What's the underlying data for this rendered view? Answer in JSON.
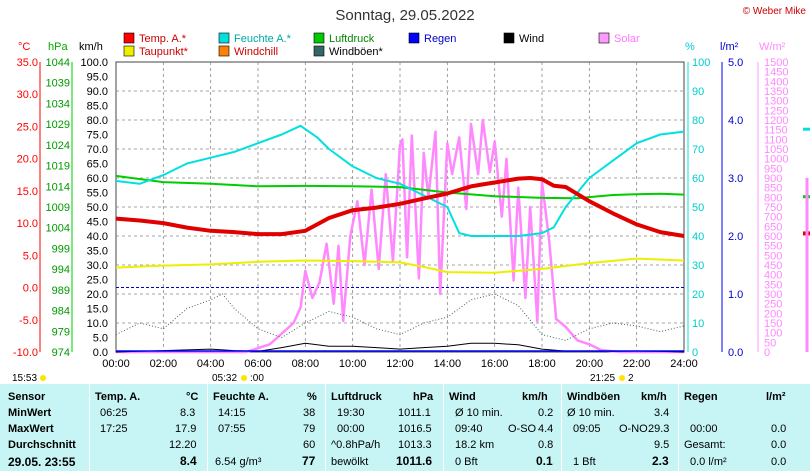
{
  "title": "Sonntag, 29.05.2022",
  "copyright": "© Weber Mike",
  "sun": {
    "rise": "05:32",
    "set": "21:25",
    "left_time": "15:53",
    "rise_suffix": ":00",
    "set_suffix": "2"
  },
  "colors": {
    "temp": "#ff0000",
    "humidity": "#00e0e0",
    "pressure": "#00cc00",
    "rain": "#0000ff",
    "wind": "#000000",
    "solar": "#ff99ff",
    "dewpoint": "#eeee00",
    "windchill": "#ff8000",
    "gust": "#336666",
    "statsbg": "#c7f5f5"
  },
  "legend": [
    {
      "label": "Temp. A.*",
      "color": "#ff0000"
    },
    {
      "label": "Feuchte A.*",
      "color": "#00e0e0"
    },
    {
      "label": "Luftdruck",
      "color": "#00cc00"
    },
    {
      "label": "Regen",
      "color": "#0000ff"
    },
    {
      "label": "Wind",
      "color": "#000000"
    },
    {
      "label": "Solar",
      "color": "#ff99ff"
    },
    {
      "label": "Taupunkt*",
      "color": "#eeee00"
    },
    {
      "label": "Windchill",
      "color": "#ff8000"
    },
    {
      "label": "Windböen*",
      "color": "#336666"
    }
  ],
  "axis_units": {
    "temp": "°C",
    "pressure": "hPa",
    "wind": "km/h",
    "humidity": "%",
    "rain": "l/m²",
    "solar": "W/m²"
  },
  "chart_data": {
    "type": "line",
    "x_unit": "hour of day",
    "xlim": [
      0,
      24
    ],
    "x_ticks": [
      "00:00",
      "02:00",
      "04:00",
      "06:00",
      "08:00",
      "10:00",
      "12:00",
      "14:00",
      "16:00",
      "18:00",
      "20:00",
      "22:00",
      "24:00"
    ],
    "axes": {
      "temp": {
        "range": [
          -10,
          35
        ],
        "ticks": [
          "-10.0",
          "-5.0",
          "0.0",
          "5.0",
          "10.0",
          "15.0",
          "20.0",
          "25.0",
          "30.0",
          "35.0"
        ]
      },
      "pressure": {
        "range": [
          974,
          1044
        ],
        "ticks": [
          "974",
          "979",
          "984",
          "989",
          "994",
          "999",
          "1004",
          "1009",
          "1014",
          "1019",
          "1024",
          "1029",
          "1034",
          "1039",
          "1044"
        ]
      },
      "wind": {
        "range": [
          0,
          100
        ],
        "ticks": [
          "0.0",
          "5.0",
          "10.0",
          "15.0",
          "20.0",
          "25.0",
          "30.0",
          "35.0",
          "40.0",
          "45.0",
          "50.0",
          "55.0",
          "60.0",
          "65.0",
          "70.0",
          "75.0",
          "80.0",
          "85.0",
          "90.0",
          "95.0",
          "100.0"
        ]
      },
      "humidity": {
        "range": [
          0,
          100
        ],
        "ticks": [
          "0",
          "10",
          "20",
          "30",
          "40",
          "50",
          "60",
          "70",
          "80",
          "90",
          "100"
        ]
      },
      "rain": {
        "range": [
          0,
          5
        ],
        "ticks": [
          "0.0",
          "1.0",
          "2.0",
          "3.0",
          "4.0",
          "5.0"
        ]
      },
      "solar": {
        "range": [
          0,
          1500
        ],
        "ticks": [
          "0",
          "50",
          "100",
          "150",
          "200",
          "250",
          "300",
          "350",
          "400",
          "450",
          "500",
          "550",
          "600",
          "650",
          "700",
          "750",
          "800",
          "850",
          "900",
          "950",
          "1000",
          "1050",
          "1100",
          "1150",
          "1200",
          "1250",
          "1300",
          "1350",
          "1400",
          "1450",
          "1500"
        ]
      }
    },
    "series": [
      {
        "name": "Temp. A.*",
        "axis": "temp",
        "x": [
          0,
          1,
          2,
          3,
          4,
          5,
          6,
          7,
          8,
          8.5,
          9,
          10,
          11,
          12,
          13,
          14,
          15,
          15.5,
          16,
          17,
          17.5,
          18,
          18.5,
          19,
          20,
          21,
          22,
          23,
          24
        ],
        "y": [
          10.7,
          10.4,
          10.0,
          9.3,
          8.8,
          8.6,
          8.3,
          8.3,
          8.8,
          9.8,
          10.8,
          12.0,
          12.4,
          13.0,
          13.8,
          14.6,
          15.7,
          16.0,
          16.3,
          16.9,
          17.0,
          16.8,
          15.8,
          15.6,
          13.4,
          11.5,
          9.8,
          8.6,
          8.0
        ]
      },
      {
        "name": "Feuchte A.*",
        "axis": "humidity",
        "x": [
          0,
          1,
          2,
          3,
          4,
          5,
          6,
          7,
          7.8,
          8.5,
          9,
          10,
          11,
          12,
          13,
          14,
          14.5,
          15,
          16,
          17,
          18,
          18.5,
          19,
          20,
          21,
          22,
          23,
          24
        ],
        "y": [
          59,
          58,
          61,
          65,
          67,
          69,
          72,
          75,
          78,
          74,
          70,
          64,
          60,
          58,
          54,
          50,
          41,
          40,
          40,
          40,
          41,
          43,
          50,
          60,
          66,
          72,
          75,
          76
        ]
      },
      {
        "name": "Luftdruck",
        "axis": "pressure",
        "x": [
          0,
          2,
          4,
          6,
          8,
          10,
          12,
          14,
          16,
          18,
          19.5,
          20,
          21,
          22,
          23,
          24
        ],
        "y": [
          1016.5,
          1015.0,
          1014.6,
          1014.0,
          1014.1,
          1014.0,
          1013.8,
          1012.5,
          1011.6,
          1011.2,
          1011.1,
          1011.4,
          1011.9,
          1012.1,
          1012.2,
          1012.0
        ]
      },
      {
        "name": "Taupunkt*",
        "axis": "temp",
        "x": [
          0,
          2,
          4,
          6,
          8,
          10,
          12,
          13,
          14,
          16,
          18,
          20,
          22,
          24
        ],
        "y": [
          3.1,
          3.4,
          3.6,
          4.0,
          4.2,
          4.1,
          3.9,
          3.2,
          2.4,
          2.3,
          2.9,
          3.8,
          4.5,
          4.2
        ]
      },
      {
        "name": "Solar",
        "axis": "solar",
        "x": [
          0,
          5.5,
          6.5,
          7.5,
          7.8,
          8.0,
          8.3,
          8.6,
          8.9,
          9.2,
          9.4,
          9.6,
          9.9,
          10.2,
          10.5,
          10.8,
          11.1,
          11.4,
          11.7,
          12.0,
          12.1,
          12.3,
          12.5,
          12.8,
          13.0,
          13.2,
          13.5,
          13.7,
          14.0,
          14.2,
          14.5,
          14.8,
          15.0,
          15.3,
          15.5,
          15.8,
          16.0,
          16.3,
          16.5,
          16.8,
          17.0,
          17.3,
          17.5,
          17.8,
          18.0,
          18.3,
          18.6,
          19.0,
          19.5,
          20.0,
          20.5,
          21.3,
          24
        ],
        "y": [
          0,
          0,
          40,
          150,
          230,
          420,
          280,
          360,
          560,
          250,
          550,
          160,
          600,
          780,
          450,
          840,
          430,
          920,
          470,
          1070,
          1100,
          490,
          1120,
          380,
          1030,
          800,
          1140,
          300,
          1080,
          920,
          1110,
          740,
          1180,
          920,
          1200,
          930,
          1090,
          700,
          1000,
          370,
          850,
          280,
          750,
          160,
          880,
          580,
          170,
          130,
          60,
          40,
          10,
          0,
          0
        ]
      },
      {
        "name": "Windböen*",
        "axis": "wind",
        "x": [
          0,
          1,
          2,
          3,
          4,
          4.5,
          5,
          6,
          7,
          8,
          9,
          10,
          11,
          12,
          13,
          14,
          15,
          16,
          17,
          18,
          19,
          20,
          21,
          22,
          23,
          24
        ],
        "y": [
          6,
          10,
          8,
          15,
          18,
          20,
          15,
          8,
          5,
          10,
          14,
          12,
          8,
          6,
          10,
          12,
          18,
          20,
          16,
          6,
          4,
          8,
          10,
          9,
          7,
          9
        ]
      },
      {
        "name": "Wind",
        "axis": "wind",
        "x": [
          0,
          2,
          4,
          5,
          6,
          7,
          8,
          9,
          10,
          11,
          12,
          13,
          14,
          15,
          16,
          17,
          18,
          19,
          20,
          21,
          22,
          23,
          24
        ],
        "y": [
          0,
          0.5,
          1,
          0.5,
          0.2,
          1.5,
          3,
          2,
          2,
          1.5,
          1,
          1.5,
          2,
          3,
          3,
          2.5,
          1,
          0.3,
          0.3,
          0.2,
          0.3,
          0.2,
          0
        ]
      }
    ],
    "rain_series": {
      "name": "Regen",
      "axis": "rain",
      "x": [
        0,
        24
      ],
      "y": [
        0,
        0
      ]
    }
  },
  "stats": {
    "labels": {
      "sensor": "Sensor",
      "min": "MinWert",
      "max": "MaxWert",
      "avg": "Durchschnitt",
      "now": "29.05. 23:55"
    },
    "temp": {
      "title": "Temp. A.",
      "unit": "°C",
      "min_time": "06:25",
      "min": "8.3",
      "max_time": "17:25",
      "max": "17.9",
      "avg": "12.20",
      "now": "8.4"
    },
    "humidity": {
      "title": "Feuchte A.",
      "unit": "%",
      "min_time": "14:15",
      "min": "38",
      "max_time": "07:55",
      "max": "79",
      "avg": "60",
      "extra": "6.54 g/m³",
      "now": "77"
    },
    "pressure": {
      "title": "Luftdruck",
      "unit": "hPa",
      "min_time": "19:30",
      "min": "1011.1",
      "max_time": "00:00",
      "max": "1016.5",
      "trend": "^0.8hPa/h",
      "avg": "1013.3",
      "state": "bewölkt",
      "now": "1011.6"
    },
    "wind": {
      "title": "Wind",
      "unit": "km/h",
      "l1": "Ø 10 min.",
      "v1": "0.2",
      "l2": "09:40",
      "d2": "O-SO",
      "v2": "4.4",
      "l3": "18.2 km",
      "v3": "0.8",
      "l4": "0 Bft",
      "v4": "0.1"
    },
    "gust": {
      "title": "Windböen",
      "unit": "km/h",
      "l1": "Ø 10 min.",
      "v1": "3.4",
      "l2": "09:05",
      "d2": "O-NO",
      "v2": "29.3",
      "v3": "9.5",
      "l4": "1 Bft",
      "v4": "2.3"
    },
    "rain": {
      "title": "Regen",
      "unit": "l/m²",
      "l2": "00:00",
      "v2": "0.0",
      "l3": "Gesamt:",
      "v3": "0.0",
      "l4": "0.0 l/m²",
      "v4": "0.0"
    }
  }
}
